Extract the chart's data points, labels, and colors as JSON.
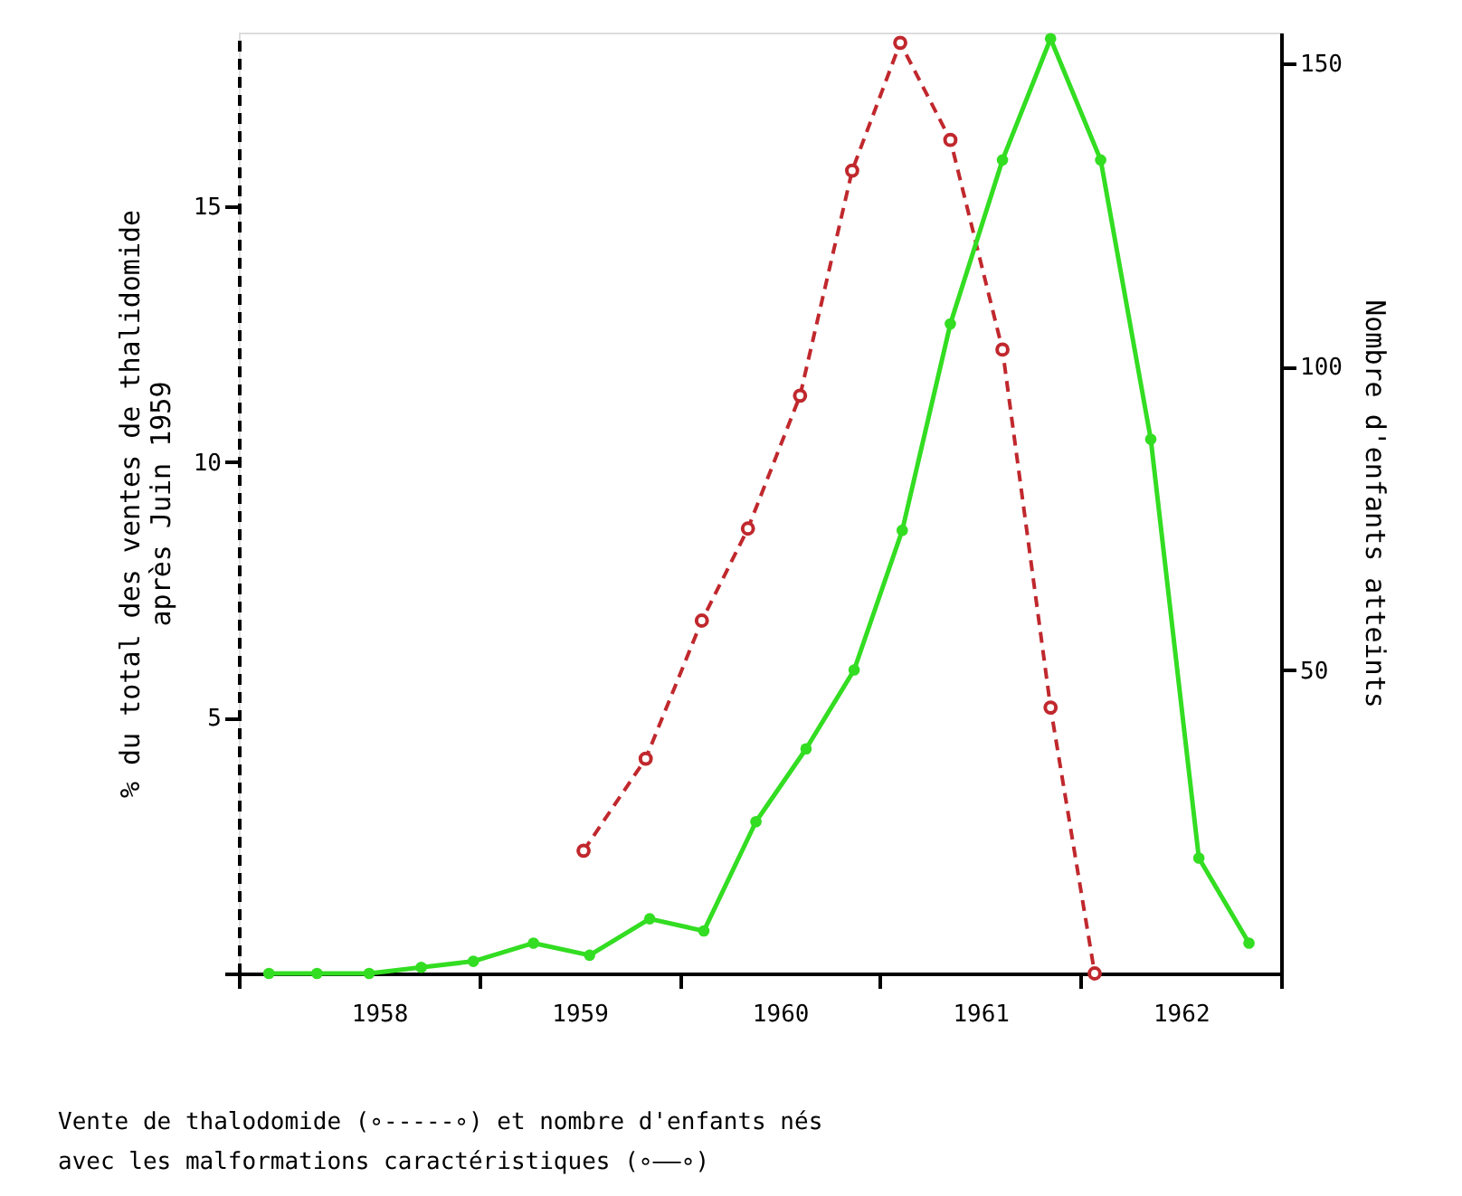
{
  "chart_data": {
    "type": "line",
    "ylabel": "% du total des ventes de thalidomide\naprès Juin 1959",
    "y2label": "Nombre d'enfants atteints",
    "annotations": [
      "Vente de thalodomide (∘-----∘) et nombre d'enfants nés",
      "avec les malformations caractéristiques (∘——∘)"
    ],
    "xlim": [
      1957.8,
      1963
    ],
    "xticks": [
      {
        "value": 1957.8,
        "label": null
      },
      {
        "value": 1958.5,
        "label": "1958"
      },
      {
        "value": 1959,
        "label": null
      },
      {
        "value": 1959.5,
        "label": "1959"
      },
      {
        "value": 1960,
        "label": null
      },
      {
        "value": 1960.5,
        "label": "1960"
      },
      {
        "value": 1961,
        "label": null
      },
      {
        "value": 1961.5,
        "label": "1961"
      },
      {
        "value": 1962,
        "label": null
      },
      {
        "value": 1962.5,
        "label": "1962"
      },
      {
        "value": 1963,
        "label": null
      }
    ],
    "ylim": [
      0,
      18.4
    ],
    "yticks": [
      {
        "value": 0,
        "label": null
      },
      5,
      10,
      15
    ],
    "y2lim": [
      0,
      155
    ],
    "y2ticks": [
      50,
      100,
      150
    ],
    "grid": false,
    "legend": false,
    "series": [
      {
        "color": "#c0282d",
        "marker": "circle",
        "line_style": "dashed",
        "x": [
          1959.52,
          1959.83,
          1960.11,
          1960.34,
          1960.6,
          1960.86,
          1961.1,
          1961.35,
          1961.61,
          1961.85,
          1962.07
        ],
        "values": [
          2.4,
          4.2,
          6.9,
          8.7,
          11.3,
          15.7,
          18.2,
          16.3,
          12.2,
          5.2,
          0
        ]
      },
      {
        "color": "#33dd22",
        "marker": "circle",
        "line_style": "solid",
        "axis": "y2",
        "x": [
          1957.95,
          1958.19,
          1958.45,
          1958.71,
          1958.97,
          1959.27,
          1959.55,
          1959.85,
          1960.12,
          1960.38,
          1960.63,
          1960.87,
          1961.11,
          1961.35,
          1961.61,
          1961.85,
          1962.1,
          1962.35,
          1962.59,
          1962.84
        ],
        "values": [
          0,
          0,
          0,
          1,
          2,
          5,
          3,
          9,
          7,
          25,
          37,
          50,
          73,
          107,
          134,
          154,
          134,
          88,
          19,
          5
        ]
      }
    ]
  }
}
